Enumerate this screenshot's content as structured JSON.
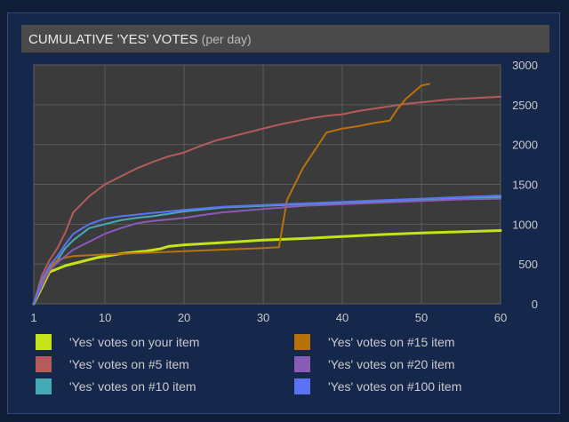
{
  "title": "CUMULATIVE 'YES' VOTES",
  "subtitle": "(per day)",
  "chart_data": {
    "type": "line",
    "title": "CUMULATIVE 'YES' VOTES (per day)",
    "xlabel": "",
    "ylabel": "",
    "xlim": [
      1,
      60
    ],
    "ylim": [
      0,
      3000
    ],
    "x_ticks": [
      1,
      10,
      20,
      30,
      40,
      50,
      60
    ],
    "y_ticks": [
      0,
      500,
      1000,
      1500,
      2000,
      2500,
      3000
    ],
    "grid": true,
    "y_axis_side": "right",
    "legend_position": "bottom",
    "series": [
      {
        "name": "'Yes' votes on your item",
        "color": "#c6e21a",
        "x": [
          1,
          2,
          3,
          5,
          7,
          9,
          12,
          15,
          17,
          18,
          20,
          25,
          30,
          35,
          40,
          45,
          50,
          55,
          60
        ],
        "y": [
          0,
          200,
          400,
          480,
          530,
          580,
          630,
          660,
          690,
          720,
          740,
          770,
          800,
          820,
          845,
          870,
          890,
          905,
          920
        ]
      },
      {
        "name": "'Yes' votes on #5 item",
        "color": "#b65a5a",
        "x": [
          1,
          2,
          3,
          4,
          5,
          6,
          8,
          10,
          12,
          14,
          16,
          18,
          20,
          22,
          24,
          26,
          28,
          30,
          32,
          34,
          36,
          38,
          40,
          42,
          44,
          46,
          48,
          50,
          52,
          54,
          56,
          58,
          60
        ],
        "y": [
          0,
          350,
          550,
          700,
          900,
          1150,
          1350,
          1500,
          1600,
          1700,
          1780,
          1850,
          1900,
          1980,
          2050,
          2100,
          2150,
          2200,
          2250,
          2290,
          2330,
          2360,
          2380,
          2420,
          2450,
          2480,
          2510,
          2530,
          2550,
          2570,
          2580,
          2590,
          2600
        ]
      },
      {
        "name": "'Yes' votes on #10 item",
        "color": "#45aab8",
        "x": [
          1,
          2,
          3,
          4,
          5,
          6,
          8,
          10,
          12,
          14,
          16,
          18,
          20,
          25,
          30,
          35,
          40,
          45,
          50,
          55,
          60
        ],
        "y": [
          0,
          250,
          450,
          550,
          700,
          800,
          950,
          1000,
          1050,
          1080,
          1100,
          1130,
          1160,
          1210,
          1230,
          1250,
          1270,
          1290,
          1300,
          1320,
          1340
        ]
      },
      {
        "name": "'Yes' votes on #15 item",
        "color": "#b8720c",
        "x": [
          1,
          2,
          3,
          4,
          5,
          6,
          10,
          15,
          20,
          25,
          30,
          32,
          33,
          34,
          35,
          36,
          37,
          38,
          40,
          42,
          44,
          46,
          47,
          48,
          50,
          51
        ],
        "y": [
          0,
          250,
          450,
          550,
          580,
          600,
          620,
          640,
          660,
          680,
          700,
          710,
          1300,
          1500,
          1700,
          1850,
          2000,
          2150,
          2200,
          2230,
          2270,
          2300,
          2450,
          2570,
          2740,
          2760
        ]
      },
      {
        "name": "'Yes' votes on #20 item",
        "color": "#8a5bb6",
        "x": [
          1,
          2,
          3,
          4,
          5,
          6,
          8,
          10,
          12,
          14,
          16,
          18,
          20,
          22,
          25,
          30,
          35,
          40,
          45,
          50,
          55,
          60
        ],
        "y": [
          0,
          220,
          420,
          520,
          600,
          680,
          780,
          880,
          950,
          1010,
          1040,
          1060,
          1080,
          1110,
          1150,
          1190,
          1230,
          1250,
          1270,
          1290,
          1310,
          1320
        ]
      },
      {
        "name": "'Yes' votes on #100 item",
        "color": "#5b73f2",
        "x": [
          1,
          2,
          3,
          4,
          5,
          6,
          8,
          10,
          12,
          14,
          16,
          18,
          20,
          25,
          30,
          35,
          40,
          45,
          50,
          55,
          60
        ],
        "y": [
          0,
          300,
          480,
          600,
          750,
          880,
          1000,
          1070,
          1100,
          1120,
          1140,
          1160,
          1180,
          1220,
          1240,
          1260,
          1280,
          1300,
          1320,
          1340,
          1360
        ]
      }
    ]
  }
}
